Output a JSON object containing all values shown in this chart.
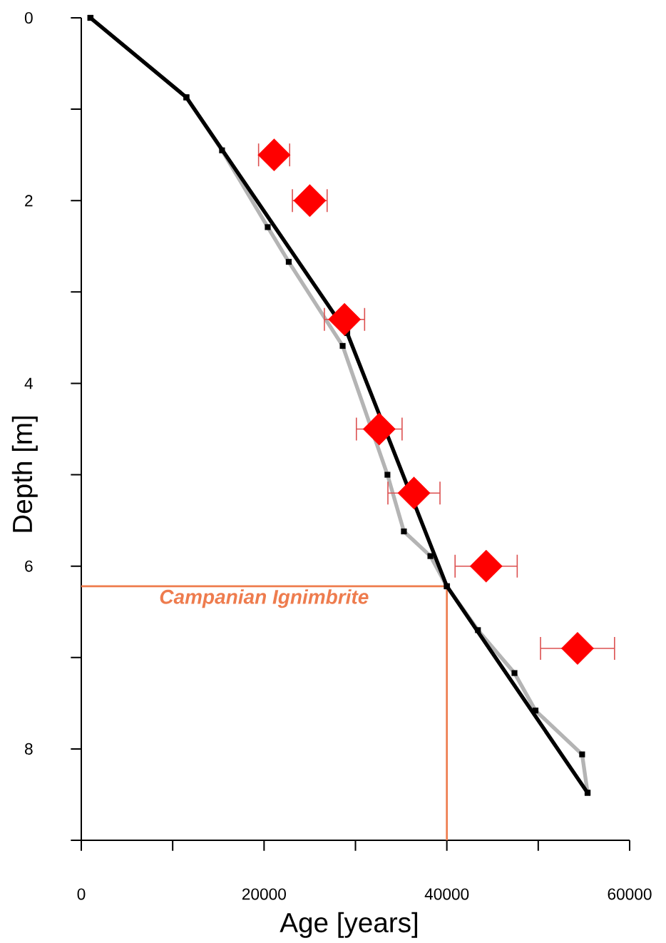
{
  "chart_data": {
    "type": "line",
    "xlabel": "Age [years]",
    "ylabel": "Depth [m]",
    "xlim": [
      0,
      60000
    ],
    "ylim": [
      9,
      0
    ],
    "xticks": [
      0,
      {
        "value": 10000,
        "label": null
      },
      20000,
      {
        "value": 30000,
        "label": null
      },
      40000,
      {
        "value": 50000,
        "label": null
      },
      60000
    ],
    "yticks": [
      0,
      {
        "value": 1,
        "label": null
      },
      2,
      {
        "value": 3,
        "label": null
      },
      4,
      {
        "value": 5,
        "label": null
      },
      6,
      {
        "value": 7,
        "label": null
      },
      8,
      {
        "value": 9,
        "label": null
      }
    ],
    "series": [
      {
        "color": "#b4b4b4",
        "marker": "square",
        "x": [
          1000,
          11500,
          15400,
          20400,
          22700,
          28600,
          33500,
          35300,
          38200,
          40000,
          43400,
          47400,
          49700,
          54800,
          55400
        ],
        "values": [
          0,
          0.87,
          1.45,
          2.29,
          2.67,
          3.59,
          5.0,
          5.62,
          5.89,
          6.22,
          6.7,
          7.17,
          7.58,
          8.06,
          8.48
        ]
      },
      {
        "color": "#000000",
        "marker": "square",
        "x": [
          1000,
          11500,
          29100,
          40000,
          55400
        ],
        "values": [
          0,
          0.87,
          3.45,
          6.22,
          8.48
        ]
      },
      {
        "type": "scatter",
        "color": "#ff0000",
        "marker": "diamond",
        "x": [
          21100,
          25000,
          28800,
          32600,
          36400,
          44300,
          54300
        ],
        "values": [
          1.5,
          2.0,
          3.3,
          4.5,
          5.2,
          6.0,
          6.9
        ],
        "xerrors": [
          1700,
          1900,
          2200,
          2500,
          2850,
          3400,
          4050
        ]
      }
    ],
    "ref_lines": [
      {
        "axis": "y",
        "value": 6.22,
        "label": "Campanian Ignimbrite",
        "color": "#ee7c4e"
      },
      {
        "axis": "x",
        "value": 40000,
        "color": "#ee7c4e"
      }
    ]
  }
}
